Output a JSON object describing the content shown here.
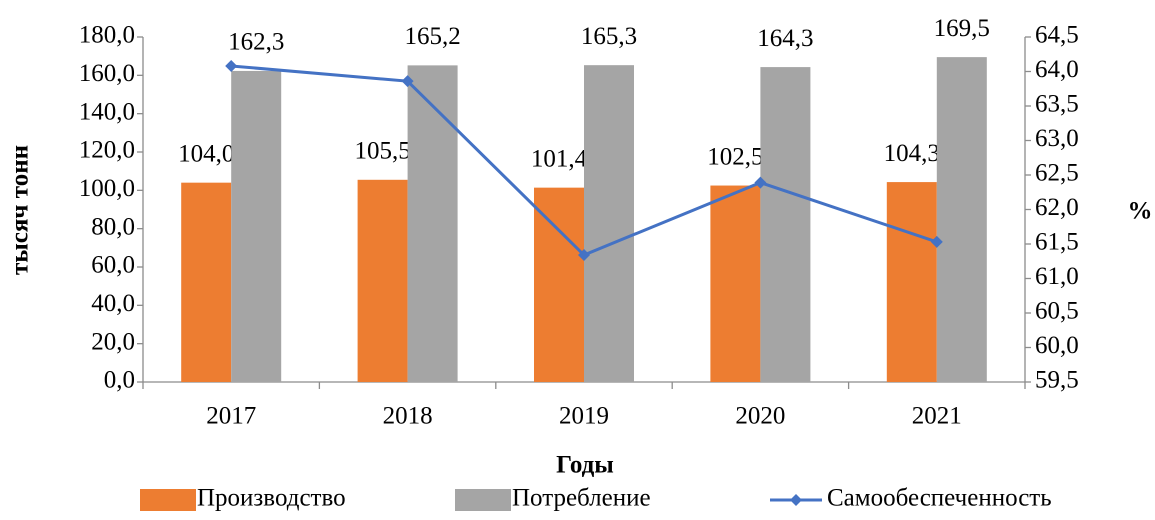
{
  "chart_data": {
    "type": "bar",
    "categories": [
      "2017",
      "2018",
      "2019",
      "2020",
      "2021"
    ],
    "series": [
      {
        "name": "Производство",
        "color": "#ed7d31",
        "values": [
          104.0,
          105.5,
          101.4,
          102.5,
          104.3
        ],
        "value_labels": [
          "104,0",
          "105,5",
          "101,4",
          "102,5",
          "104,3"
        ]
      },
      {
        "name": "Потребление",
        "color": "#a5a5a5",
        "values": [
          162.3,
          165.2,
          165.3,
          164.3,
          169.5
        ],
        "value_labels": [
          "162,3",
          "165,2",
          "165,3",
          "164,3",
          "169,5"
        ]
      },
      {
        "name": "Самообеспеченность",
        "color": "#4472c4",
        "type": "line",
        "axis": "y2",
        "values": [
          64.08,
          63.86,
          61.34,
          62.39,
          61.53
        ]
      }
    ],
    "ylabel": "тысяч тонн",
    "y2label": "%",
    "xlabel": "Годы",
    "ylim": [
      0,
      180
    ],
    "yticks": [
      {
        "value": 0,
        "label": "0,0"
      },
      {
        "value": 20,
        "label": "20,0"
      },
      {
        "value": 40,
        "label": "40,0"
      },
      {
        "value": 60,
        "label": "60,0"
      },
      {
        "value": 80,
        "label": "80,0"
      },
      {
        "value": 100,
        "label": "100,0"
      },
      {
        "value": 120,
        "label": "120,0"
      },
      {
        "value": 140,
        "label": "140,0"
      },
      {
        "value": 160,
        "label": "160,0"
      },
      {
        "value": 180,
        "label": "180,0"
      }
    ],
    "y2lim": [
      59.5,
      64.5
    ],
    "y2ticks": [
      {
        "value": 59.5,
        "label": "59,5"
      },
      {
        "value": 60,
        "label": "60,0"
      },
      {
        "value": 60.5,
        "label": "60,5"
      },
      {
        "value": 61,
        "label": "61,0"
      },
      {
        "value": 61.5,
        "label": "61,5"
      },
      {
        "value": 62,
        "label": "62,0"
      },
      {
        "value": 62.5,
        "label": "62,5"
      },
      {
        "value": 63,
        "label": "63,0"
      },
      {
        "value": 63.5,
        "label": "63,5"
      },
      {
        "value": 64,
        "label": "64,0"
      },
      {
        "value": 64.5,
        "label": "64,5"
      }
    ],
    "grid": false,
    "legend": "bottom"
  }
}
